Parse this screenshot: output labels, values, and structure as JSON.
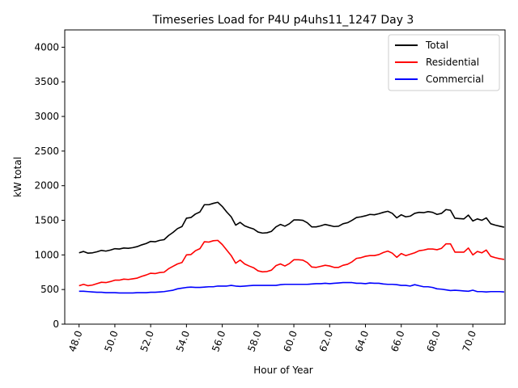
{
  "chart_data": {
    "type": "line",
    "title": "Timeseries Load for P4U p4uhs11_1247  Day 3",
    "xlabel": "Hour of Year",
    "ylabel": "kW total",
    "xlim": [
      47.2,
      71.8
    ],
    "ylim": [
      0,
      4250
    ],
    "xticks": [
      48,
      50,
      52,
      54,
      56,
      58,
      60,
      62,
      64,
      66,
      68,
      70
    ],
    "xtick_labels": [
      "48.0",
      "50.0",
      "52.0",
      "54.0",
      "56.0",
      "58.0",
      "60.0",
      "62.0",
      "64.0",
      "66.0",
      "68.0",
      "70.0"
    ],
    "yticks": [
      0,
      500,
      1000,
      1500,
      2000,
      2500,
      3000,
      3500,
      4000
    ],
    "ytick_labels": [
      "0",
      "500",
      "1000",
      "1500",
      "2000",
      "2500",
      "3000",
      "3500",
      "4000"
    ],
    "legend_position": "top-right",
    "grid": false,
    "x": [
      48.0,
      48.25,
      48.5,
      48.75,
      49.0,
      49.25,
      49.5,
      49.75,
      50.0,
      50.25,
      50.5,
      50.75,
      51.0,
      51.25,
      51.5,
      51.75,
      52.0,
      52.25,
      52.5,
      52.75,
      53.0,
      53.25,
      53.5,
      53.75,
      54.0,
      54.25,
      54.5,
      54.75,
      55.0,
      55.25,
      55.5,
      55.75,
      56.0,
      56.25,
      56.5,
      56.75,
      57.0,
      57.25,
      57.5,
      57.75,
      58.0,
      58.25,
      58.5,
      58.75,
      59.0,
      59.25,
      59.5,
      59.75,
      60.0,
      60.25,
      60.5,
      60.75,
      61.0,
      61.25,
      61.5,
      61.75,
      62.0,
      62.25,
      62.5,
      62.75,
      63.0,
      63.25,
      63.5,
      63.75,
      64.0,
      64.25,
      64.5,
      64.75,
      65.0,
      65.25,
      65.5,
      65.75,
      66.0,
      66.25,
      66.5,
      66.75,
      67.0,
      67.25,
      67.5,
      67.75,
      68.0,
      68.25,
      68.5,
      68.75,
      69.0,
      69.25,
      69.5,
      69.75,
      70.0,
      70.25,
      70.5,
      70.75,
      71.0,
      71.25,
      71.5,
      71.75
    ],
    "series": [
      {
        "name": "Total",
        "color": "#000000",
        "values": [
          1030,
          1050,
          1025,
          1030,
          1045,
          1065,
          1055,
          1070,
          1090,
          1085,
          1100,
          1095,
          1105,
          1120,
          1145,
          1165,
          1195,
          1190,
          1210,
          1220,
          1280,
          1325,
          1380,
          1410,
          1530,
          1540,
          1590,
          1620,
          1725,
          1725,
          1745,
          1760,
          1700,
          1620,
          1550,
          1430,
          1470,
          1420,
          1395,
          1375,
          1330,
          1315,
          1320,
          1340,
          1405,
          1440,
          1415,
          1450,
          1505,
          1505,
          1500,
          1465,
          1405,
          1405,
          1420,
          1440,
          1425,
          1410,
          1415,
          1450,
          1465,
          1500,
          1540,
          1550,
          1565,
          1585,
          1580,
          1595,
          1615,
          1630,
          1600,
          1535,
          1580,
          1550,
          1560,
          1600,
          1615,
          1610,
          1625,
          1615,
          1585,
          1600,
          1655,
          1645,
          1530,
          1525,
          1520,
          1575,
          1490,
          1520,
          1500,
          1535,
          1450,
          1430,
          1415,
          1400
        ]
      },
      {
        "name": "Residential",
        "color": "#ff0000",
        "values": [
          555,
          575,
          555,
          565,
          585,
          605,
          600,
          615,
          635,
          635,
          650,
          645,
          655,
          665,
          690,
          710,
          735,
          730,
          745,
          750,
          800,
          835,
          870,
          890,
          1000,
          1005,
          1060,
          1090,
          1190,
          1185,
          1205,
          1210,
          1150,
          1070,
          990,
          880,
          925,
          870,
          840,
          815,
          770,
          755,
          760,
          780,
          845,
          870,
          840,
          875,
          930,
          930,
          925,
          890,
          825,
          820,
          835,
          850,
          840,
          820,
          820,
          850,
          865,
          900,
          950,
          960,
          980,
          990,
          990,
          1005,
          1035,
          1055,
          1025,
          965,
          1020,
          990,
          1010,
          1030,
          1060,
          1070,
          1085,
          1085,
          1075,
          1095,
          1160,
          1160,
          1040,
          1040,
          1040,
          1100,
          1000,
          1050,
          1030,
          1070,
          980,
          960,
          945,
          935
        ]
      },
      {
        "name": "Commercial",
        "color": "#0000ff",
        "values": [
          475,
          475,
          470,
          465,
          460,
          460,
          455,
          455,
          455,
          450,
          450,
          450,
          450,
          455,
          455,
          455,
          460,
          460,
          465,
          470,
          480,
          490,
          510,
          520,
          530,
          535,
          530,
          530,
          535,
          540,
          540,
          550,
          550,
          550,
          560,
          550,
          545,
          550,
          555,
          560,
          560,
          560,
          560,
          560,
          560,
          570,
          575,
          575,
          575,
          575,
          575,
          575,
          580,
          585,
          585,
          590,
          585,
          590,
          595,
          600,
          600,
          600,
          590,
          590,
          585,
          595,
          590,
          590,
          580,
          575,
          575,
          570,
          560,
          560,
          550,
          570,
          555,
          540,
          540,
          530,
          510,
          505,
          495,
          485,
          490,
          485,
          480,
          475,
          490,
          470,
          470,
          465,
          470,
          470,
          470,
          465
        ]
      }
    ]
  }
}
